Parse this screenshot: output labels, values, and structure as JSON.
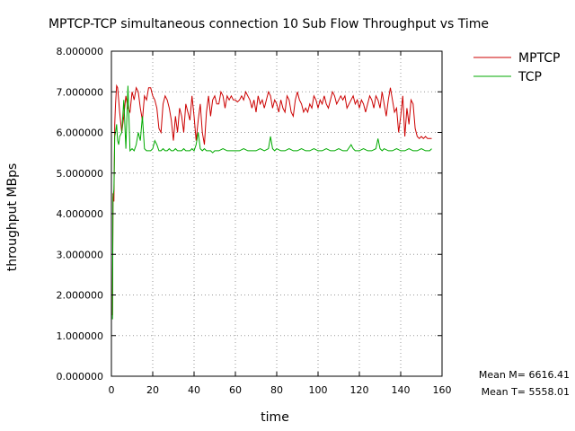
{
  "chart_data": {
    "type": "line",
    "title": "MPTCP-TCP simultaneous connection 10 Sub Flow Throughput vs Time",
    "xlabel": "time",
    "ylabel": "throughput MBps",
    "xlim": [
      0,
      160
    ],
    "ylim": [
      0,
      8
    ],
    "x_ticks": [
      0,
      20,
      40,
      60,
      80,
      100,
      120,
      140,
      160
    ],
    "y_ticks": [
      0,
      1,
      2,
      3,
      4,
      5,
      6,
      7,
      8
    ],
    "x_tick_labels": [
      "0",
      "20",
      "40",
      "60",
      "80",
      "100",
      "120",
      "140",
      "160"
    ],
    "y_tick_labels": [
      "0.000000",
      "1.000000",
      "2.000000",
      "3.000000",
      "4.000000",
      "5.000000",
      "6.000000",
      "7.000000",
      "8.000000"
    ],
    "grid": true,
    "grid_style": "dotted",
    "legend_position": "top-right outside plot",
    "series": [
      {
        "name": "MPTCP",
        "color": "#cc0000",
        "points": [
          [
            0.5,
            1.5
          ],
          [
            0.8,
            4.5
          ],
          [
            1.2,
            4.3
          ],
          [
            1.6,
            6.2
          ],
          [
            2,
            6.7
          ],
          [
            2.5,
            7.15
          ],
          [
            3,
            7.1
          ],
          [
            3.5,
            6.8
          ],
          [
            4,
            6.5
          ],
          [
            5,
            6.0
          ],
          [
            6,
            6.4
          ],
          [
            7,
            6.9
          ],
          [
            8,
            6.6
          ],
          [
            9,
            6.5
          ],
          [
            10,
            7.0
          ],
          [
            11,
            6.8
          ],
          [
            12,
            7.1
          ],
          [
            13,
            7.0
          ],
          [
            14,
            6.6
          ],
          [
            15,
            6.3
          ],
          [
            16,
            6.9
          ],
          [
            17,
            6.8
          ],
          [
            18,
            7.1
          ],
          [
            19,
            7.1
          ],
          [
            20,
            6.9
          ],
          [
            21,
            6.8
          ],
          [
            22,
            6.6
          ],
          [
            23,
            6.1
          ],
          [
            24,
            6.0
          ],
          [
            25,
            6.7
          ],
          [
            26,
            6.9
          ],
          [
            27,
            6.8
          ],
          [
            28,
            6.6
          ],
          [
            29,
            6.3
          ],
          [
            30,
            5.8
          ],
          [
            31,
            6.4
          ],
          [
            32,
            6.0
          ],
          [
            33,
            6.6
          ],
          [
            34,
            6.4
          ],
          [
            35,
            6.0
          ],
          [
            36,
            6.7
          ],
          [
            37,
            6.5
          ],
          [
            38,
            6.3
          ],
          [
            39,
            6.9
          ],
          [
            40,
            6.4
          ],
          [
            41,
            5.8
          ],
          [
            42,
            6.3
          ],
          [
            43,
            6.7
          ],
          [
            44,
            6.0
          ],
          [
            45,
            5.7
          ],
          [
            46,
            6.5
          ],
          [
            47,
            6.9
          ],
          [
            48,
            6.4
          ],
          [
            49,
            6.8
          ],
          [
            50,
            6.9
          ],
          [
            51,
            6.7
          ],
          [
            52,
            6.7
          ],
          [
            53,
            7.0
          ],
          [
            54,
            6.9
          ],
          [
            55,
            6.6
          ],
          [
            56,
            6.9
          ],
          [
            57,
            6.8
          ],
          [
            58,
            6.9
          ],
          [
            59,
            6.8
          ],
          [
            60,
            6.8
          ],
          [
            61,
            6.75
          ],
          [
            62,
            6.8
          ],
          [
            63,
            6.9
          ],
          [
            64,
            6.8
          ],
          [
            65,
            7.0
          ],
          [
            66,
            6.9
          ],
          [
            67,
            6.8
          ],
          [
            68,
            6.6
          ],
          [
            69,
            6.8
          ],
          [
            70,
            6.5
          ],
          [
            71,
            6.9
          ],
          [
            72,
            6.7
          ],
          [
            73,
            6.8
          ],
          [
            74,
            6.6
          ],
          [
            75,
            6.8
          ],
          [
            76,
            7.0
          ],
          [
            77,
            6.9
          ],
          [
            78,
            6.6
          ],
          [
            79,
            6.8
          ],
          [
            80,
            6.7
          ],
          [
            81,
            6.5
          ],
          [
            82,
            6.8
          ],
          [
            83,
            6.6
          ],
          [
            84,
            6.5
          ],
          [
            85,
            6.9
          ],
          [
            86,
            6.8
          ],
          [
            87,
            6.5
          ],
          [
            88,
            6.4
          ],
          [
            89,
            6.8
          ],
          [
            90,
            7.0
          ],
          [
            91,
            6.8
          ],
          [
            92,
            6.7
          ],
          [
            93,
            6.5
          ],
          [
            94,
            6.6
          ],
          [
            95,
            6.5
          ],
          [
            96,
            6.7
          ],
          [
            97,
            6.6
          ],
          [
            98,
            6.9
          ],
          [
            99,
            6.8
          ],
          [
            100,
            6.6
          ],
          [
            101,
            6.8
          ],
          [
            102,
            6.7
          ],
          [
            103,
            6.9
          ],
          [
            104,
            6.7
          ],
          [
            105,
            6.6
          ],
          [
            106,
            6.8
          ],
          [
            107,
            7.0
          ],
          [
            108,
            6.9
          ],
          [
            109,
            6.7
          ],
          [
            110,
            6.8
          ],
          [
            111,
            6.9
          ],
          [
            112,
            6.8
          ],
          [
            113,
            6.9
          ],
          [
            114,
            6.6
          ],
          [
            115,
            6.7
          ],
          [
            116,
            6.8
          ],
          [
            117,
            6.9
          ],
          [
            118,
            6.7
          ],
          [
            119,
            6.8
          ],
          [
            120,
            6.6
          ],
          [
            121,
            6.8
          ],
          [
            122,
            6.7
          ],
          [
            123,
            6.5
          ],
          [
            124,
            6.7
          ],
          [
            125,
            6.9
          ],
          [
            126,
            6.8
          ],
          [
            127,
            6.6
          ],
          [
            128,
            6.9
          ],
          [
            129,
            6.8
          ],
          [
            130,
            6.6
          ],
          [
            131,
            7.0
          ],
          [
            132,
            6.7
          ],
          [
            133,
            6.4
          ],
          [
            134,
            6.8
          ],
          [
            135,
            7.1
          ],
          [
            136,
            6.8
          ],
          [
            137,
            6.5
          ],
          [
            138,
            6.6
          ],
          [
            139,
            6.0
          ],
          [
            140,
            6.4
          ],
          [
            141,
            6.9
          ],
          [
            142,
            5.9
          ],
          [
            143,
            6.6
          ],
          [
            144,
            6.2
          ],
          [
            145,
            6.8
          ],
          [
            146,
            6.7
          ],
          [
            147,
            6.1
          ],
          [
            148,
            5.9
          ],
          [
            149,
            5.85
          ],
          [
            150,
            5.9
          ],
          [
            151,
            5.85
          ],
          [
            152,
            5.9
          ],
          [
            153,
            5.85
          ],
          [
            154,
            5.85
          ],
          [
            155,
            5.85
          ]
        ]
      },
      {
        "name": "TCP",
        "color": "#00aa00",
        "points": [
          [
            0.5,
            1.4
          ],
          [
            0.8,
            4.4
          ],
          [
            1.2,
            4.6
          ],
          [
            1.6,
            5.9
          ],
          [
            2,
            6.0
          ],
          [
            2.5,
            6.2
          ],
          [
            3,
            5.8
          ],
          [
            3.5,
            5.7
          ],
          [
            4,
            5.9
          ],
          [
            5,
            6.0
          ],
          [
            6,
            6.8
          ],
          [
            7,
            5.6
          ],
          [
            8,
            7.15
          ],
          [
            9,
            5.55
          ],
          [
            10,
            5.6
          ],
          [
            11,
            5.55
          ],
          [
            12,
            5.7
          ],
          [
            13,
            6.0
          ],
          [
            14,
            5.8
          ],
          [
            15,
            6.4
          ],
          [
            16,
            5.6
          ],
          [
            17,
            5.55
          ],
          [
            18,
            5.55
          ],
          [
            19,
            5.55
          ],
          [
            20,
            5.6
          ],
          [
            21,
            5.8
          ],
          [
            22,
            5.7
          ],
          [
            23,
            5.55
          ],
          [
            24,
            5.55
          ],
          [
            25,
            5.6
          ],
          [
            26,
            5.55
          ],
          [
            27,
            5.55
          ],
          [
            28,
            5.6
          ],
          [
            29,
            5.55
          ],
          [
            30,
            5.55
          ],
          [
            31,
            5.6
          ],
          [
            32,
            5.55
          ],
          [
            33,
            5.55
          ],
          [
            34,
            5.55
          ],
          [
            35,
            5.6
          ],
          [
            36,
            5.55
          ],
          [
            37,
            5.55
          ],
          [
            38,
            5.55
          ],
          [
            39,
            5.6
          ],
          [
            40,
            5.55
          ],
          [
            41,
            5.7
          ],
          [
            42,
            6.0
          ],
          [
            43,
            5.6
          ],
          [
            44,
            5.55
          ],
          [
            45,
            5.6
          ],
          [
            46,
            5.55
          ],
          [
            47,
            5.55
          ],
          [
            48,
            5.55
          ],
          [
            49,
            5.5
          ],
          [
            50,
            5.55
          ],
          [
            52,
            5.55
          ],
          [
            54,
            5.6
          ],
          [
            56,
            5.55
          ],
          [
            58,
            5.55
          ],
          [
            60,
            5.55
          ],
          [
            62,
            5.55
          ],
          [
            64,
            5.6
          ],
          [
            66,
            5.55
          ],
          [
            68,
            5.55
          ],
          [
            70,
            5.55
          ],
          [
            72,
            5.6
          ],
          [
            74,
            5.55
          ],
          [
            76,
            5.6
          ],
          [
            77,
            5.9
          ],
          [
            78,
            5.6
          ],
          [
            79,
            5.55
          ],
          [
            80,
            5.6
          ],
          [
            82,
            5.55
          ],
          [
            84,
            5.55
          ],
          [
            86,
            5.6
          ],
          [
            88,
            5.55
          ],
          [
            90,
            5.55
          ],
          [
            92,
            5.6
          ],
          [
            94,
            5.55
          ],
          [
            96,
            5.55
          ],
          [
            98,
            5.6
          ],
          [
            100,
            5.55
          ],
          [
            102,
            5.55
          ],
          [
            104,
            5.6
          ],
          [
            106,
            5.55
          ],
          [
            108,
            5.55
          ],
          [
            110,
            5.6
          ],
          [
            112,
            5.55
          ],
          [
            114,
            5.55
          ],
          [
            116,
            5.7
          ],
          [
            117,
            5.6
          ],
          [
            118,
            5.55
          ],
          [
            120,
            5.55
          ],
          [
            122,
            5.6
          ],
          [
            124,
            5.55
          ],
          [
            126,
            5.55
          ],
          [
            128,
            5.6
          ],
          [
            129,
            5.85
          ],
          [
            130,
            5.6
          ],
          [
            131,
            5.55
          ],
          [
            132,
            5.6
          ],
          [
            134,
            5.55
          ],
          [
            136,
            5.55
          ],
          [
            138,
            5.6
          ],
          [
            140,
            5.55
          ],
          [
            142,
            5.55
          ],
          [
            144,
            5.6
          ],
          [
            146,
            5.55
          ],
          [
            148,
            5.55
          ],
          [
            150,
            5.6
          ],
          [
            152,
            5.55
          ],
          [
            154,
            5.55
          ],
          [
            155,
            5.6
          ]
        ]
      }
    ],
    "annotations": [
      {
        "label": "Mean M",
        "text": "Mean M= 6616.41"
      },
      {
        "label": "Mean T",
        "text": "Mean T= 5558.01"
      }
    ]
  }
}
